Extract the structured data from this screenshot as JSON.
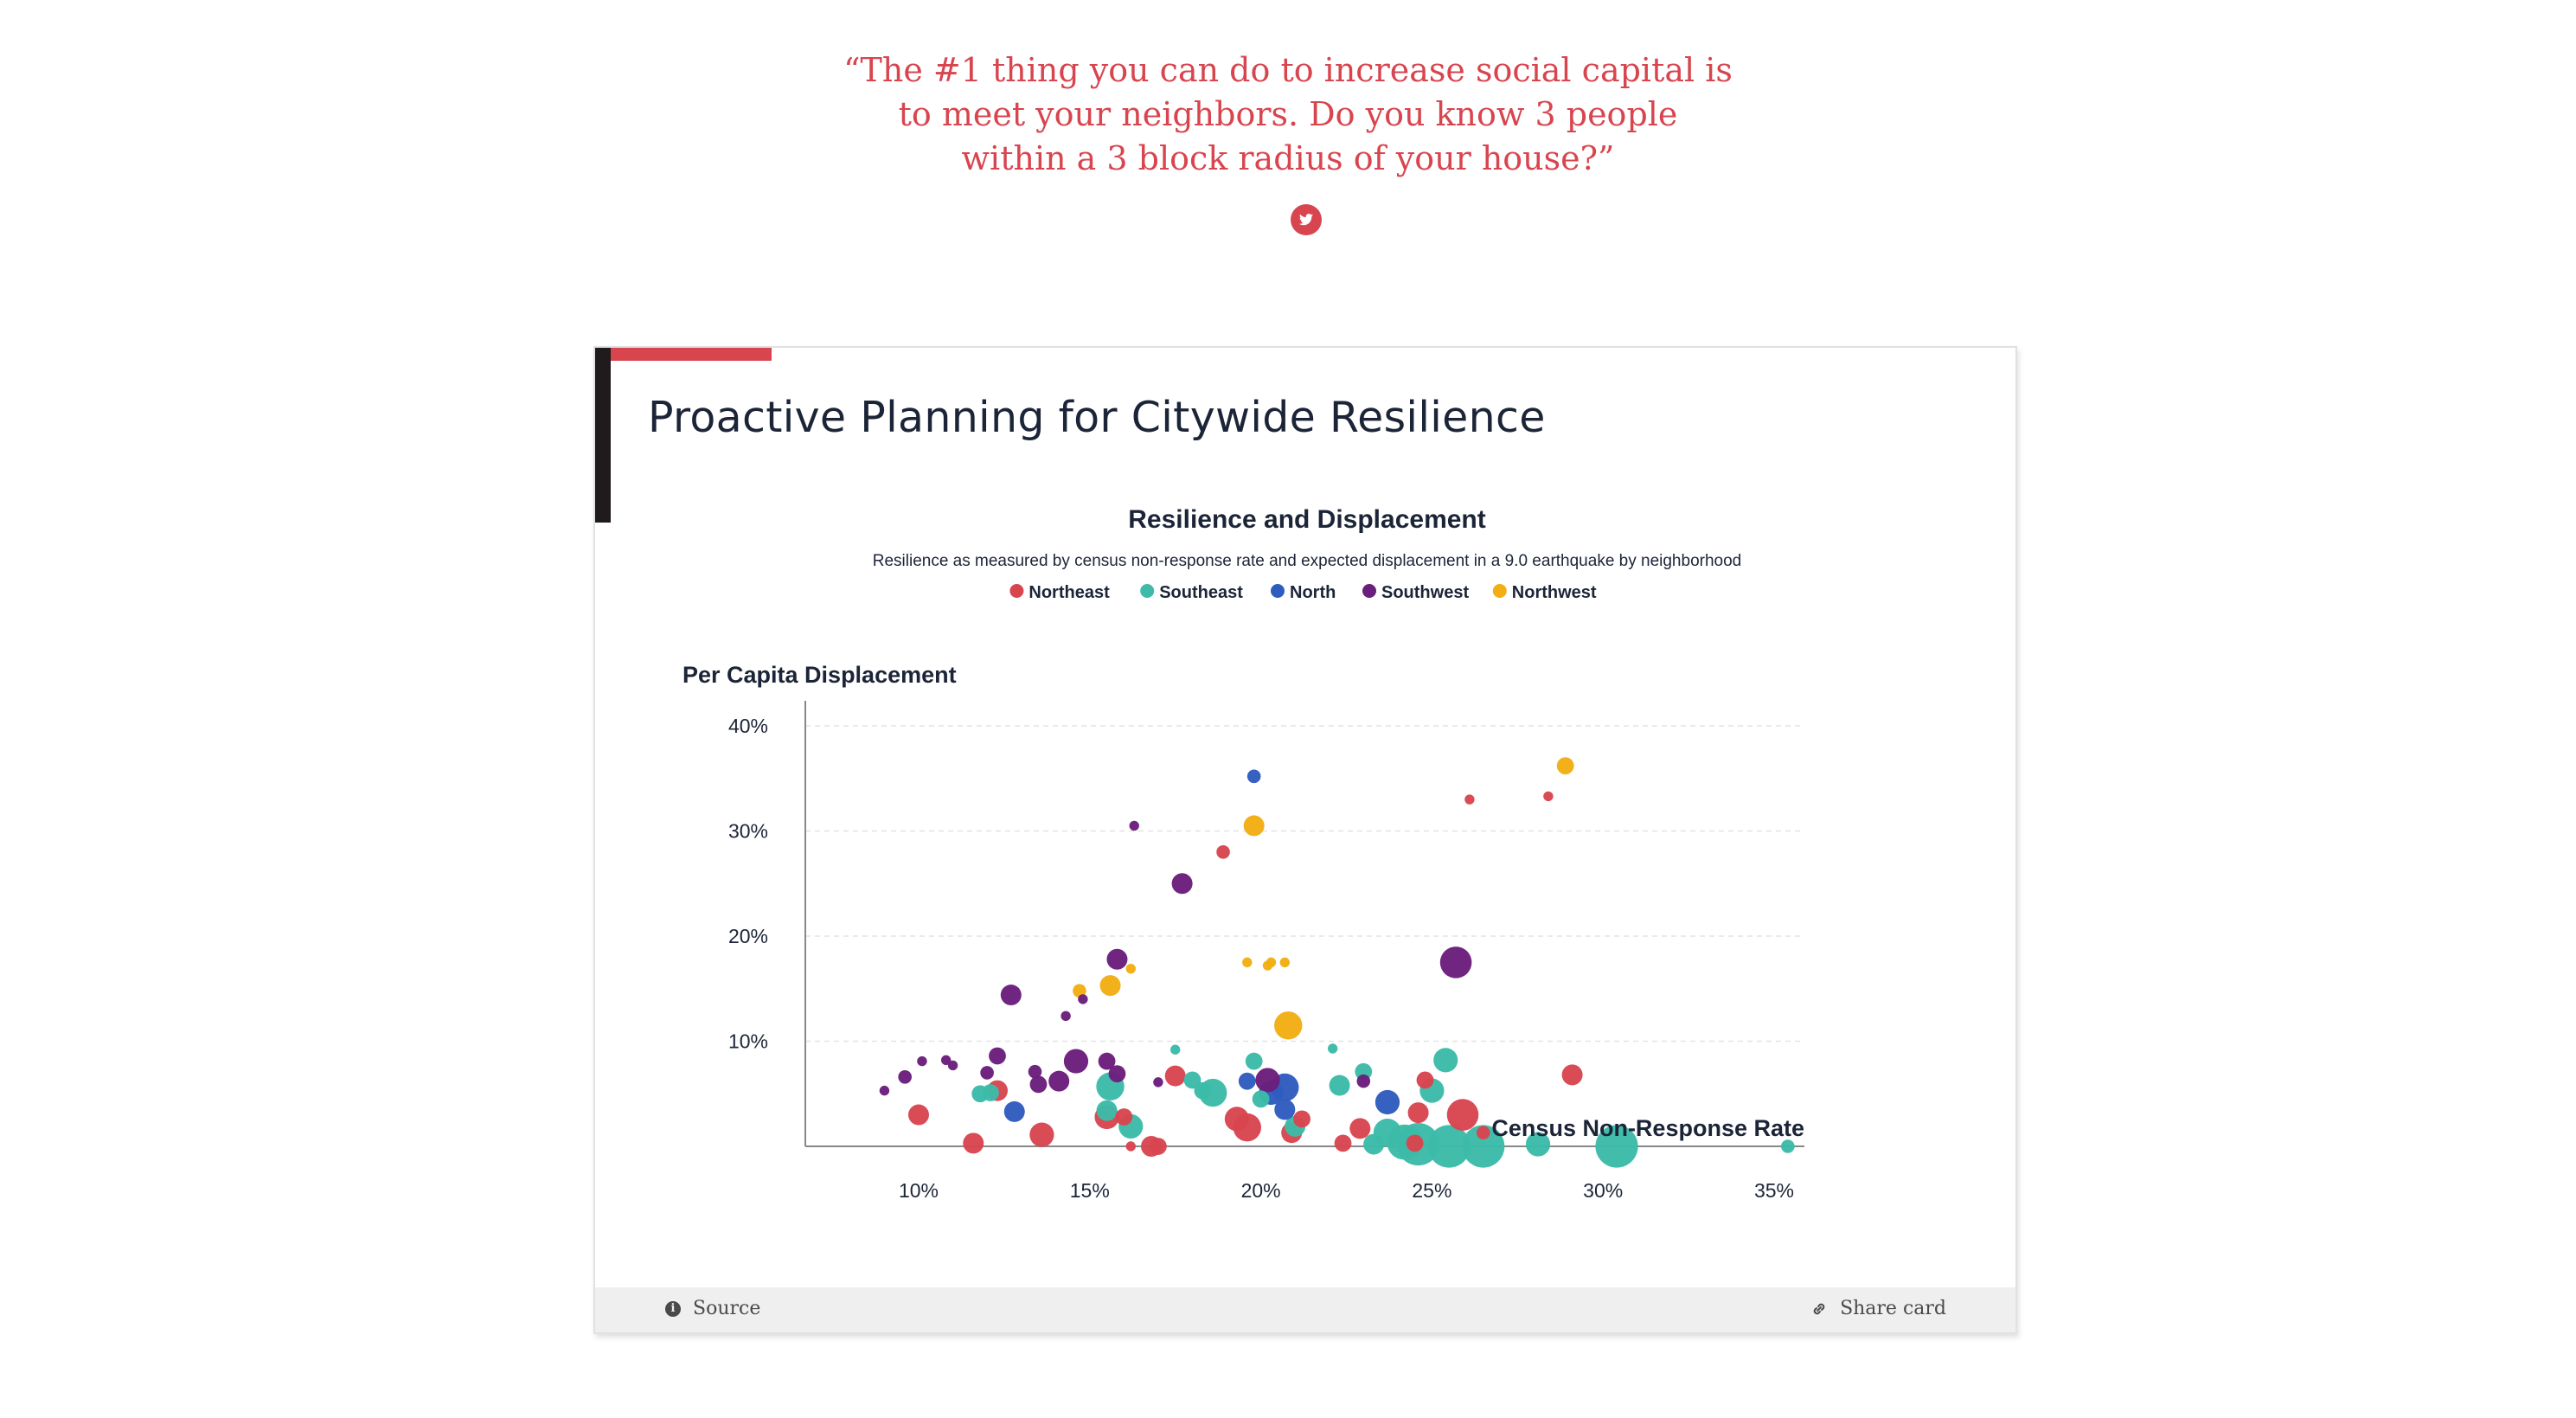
{
  "quote": {
    "lines": [
      "“The #1 thing you can do to increase social capital is",
      "to meet your neighbors. Do you know 3 people",
      "within a 3 block radius of your house?”"
    ]
  },
  "card": {
    "title": "Proactive Planning for Citywide Resilience",
    "footer": {
      "source_label": "Source",
      "share_label": "Share card"
    }
  },
  "colors": {
    "accent": "#d8454f",
    "Northeast": "#d8454f",
    "Southeast": "#3dbba8",
    "North": "#2f5cbf",
    "Southwest": "#6b1f7c",
    "Northwest": "#f2ae13"
  },
  "icons": {
    "tweet": "twitter-bird-icon",
    "source": "info-icon",
    "share": "link-icon"
  },
  "chart_data": {
    "type": "scatter",
    "title": "Resilience and Displacement",
    "subtitle": "Resilience as measured by census non-response rate and expected displacement in a 9.0 earthquake by neighborhood",
    "xlabel": "Census Non-Response Rate",
    "ylabel": "Per Capita Displacement",
    "xlim": [
      7,
      37.5
    ],
    "ylim": [
      0,
      42
    ],
    "x_ticks": [
      {
        "value": 10,
        "label": "10%"
      },
      {
        "value": 15,
        "label": "15%"
      },
      {
        "value": 20,
        "label": "20%"
      },
      {
        "value": 25,
        "label": "25%"
      },
      {
        "value": 30,
        "label": "30%"
      },
      {
        "value": 35,
        "label": "35%"
      }
    ],
    "y_ticks": [
      {
        "value": 10,
        "label": "10%"
      },
      {
        "value": 20,
        "label": "20%"
      },
      {
        "value": 30,
        "label": "30%"
      },
      {
        "value": 40,
        "label": "40%"
      }
    ],
    "legend_position": "top-center",
    "grid": "horizontal dashed",
    "size_note": "point size varies",
    "series": [
      {
        "name": "Northeast",
        "points": [
          {
            "x": 10.0,
            "y": 3.0,
            "s": 5
          },
          {
            "x": 11.6,
            "y": 0.3,
            "s": 5
          },
          {
            "x": 12.3,
            "y": 5.3,
            "s": 5
          },
          {
            "x": 13.6,
            "y": 1.1,
            "s": 6
          },
          {
            "x": 15.5,
            "y": 2.8,
            "s": 6
          },
          {
            "x": 16.0,
            "y": 2.8,
            "s": 4
          },
          {
            "x": 16.2,
            "y": 0.0,
            "s": 2
          },
          {
            "x": 16.8,
            "y": 0.0,
            "s": 5
          },
          {
            "x": 17.0,
            "y": 0.0,
            "s": 4
          },
          {
            "x": 17.5,
            "y": 6.7,
            "s": 5
          },
          {
            "x": 18.9,
            "y": 28.0,
            "s": 3
          },
          {
            "x": 19.3,
            "y": 2.6,
            "s": 6
          },
          {
            "x": 19.6,
            "y": 1.8,
            "s": 7
          },
          {
            "x": 20.9,
            "y": 1.3,
            "s": 5
          },
          {
            "x": 21.2,
            "y": 2.6,
            "s": 4
          },
          {
            "x": 22.4,
            "y": 0.3,
            "s": 4
          },
          {
            "x": 22.9,
            "y": 1.7,
            "s": 5
          },
          {
            "x": 24.6,
            "y": 3.2,
            "s": 5
          },
          {
            "x": 24.8,
            "y": 6.3,
            "s": 4
          },
          {
            "x": 24.5,
            "y": 0.3,
            "s": 4
          },
          {
            "x": 25.9,
            "y": 3.0,
            "s": 8
          },
          {
            "x": 26.1,
            "y": 33.0,
            "s": 2
          },
          {
            "x": 26.5,
            "y": 1.3,
            "s": 3
          },
          {
            "x": 28.4,
            "y": 33.3,
            "s": 2
          },
          {
            "x": 29.1,
            "y": 6.8,
            "s": 5
          }
        ]
      },
      {
        "name": "Southeast",
        "points": [
          {
            "x": 11.8,
            "y": 5.0,
            "s": 4
          },
          {
            "x": 12.1,
            "y": 5.1,
            "s": 4
          },
          {
            "x": 15.5,
            "y": 3.4,
            "s": 5
          },
          {
            "x": 15.6,
            "y": 5.7,
            "s": 7
          },
          {
            "x": 16.2,
            "y": 1.9,
            "s": 6
          },
          {
            "x": 17.5,
            "y": 9.2,
            "s": 2
          },
          {
            "x": 18.0,
            "y": 6.3,
            "s": 4
          },
          {
            "x": 18.3,
            "y": 5.3,
            "s": 4
          },
          {
            "x": 18.6,
            "y": 5.1,
            "s": 7
          },
          {
            "x": 19.8,
            "y": 8.1,
            "s": 4
          },
          {
            "x": 20.0,
            "y": 4.5,
            "s": 4
          },
          {
            "x": 21.0,
            "y": 1.9,
            "s": 5
          },
          {
            "x": 22.1,
            "y": 9.3,
            "s": 2
          },
          {
            "x": 22.3,
            "y": 5.8,
            "s": 5
          },
          {
            "x": 23.0,
            "y": 7.1,
            "s": 4
          },
          {
            "x": 23.3,
            "y": 0.2,
            "s": 5
          },
          {
            "x": 23.7,
            "y": 1.3,
            "s": 7
          },
          {
            "x": 24.2,
            "y": 0.4,
            "s": 9
          },
          {
            "x": 24.6,
            "y": 0.2,
            "s": 11
          },
          {
            "x": 25.0,
            "y": 5.3,
            "s": 6
          },
          {
            "x": 25.4,
            "y": 8.2,
            "s": 6
          },
          {
            "x": 25.5,
            "y": 0.0,
            "s": 11
          },
          {
            "x": 26.5,
            "y": 0.0,
            "s": 11
          },
          {
            "x": 28.1,
            "y": 0.2,
            "s": 6
          },
          {
            "x": 30.4,
            "y": 0.0,
            "s": 11
          },
          {
            "x": 35.4,
            "y": 0.0,
            "s": 3
          }
        ]
      },
      {
        "name": "North",
        "points": [
          {
            "x": 12.8,
            "y": 3.3,
            "s": 5
          },
          {
            "x": 19.8,
            "y": 35.2,
            "s": 3
          },
          {
            "x": 19.6,
            "y": 6.2,
            "s": 4
          },
          {
            "x": 20.3,
            "y": 5.1,
            "s": 6
          },
          {
            "x": 20.7,
            "y": 5.6,
            "s": 7
          },
          {
            "x": 20.7,
            "y": 3.5,
            "s": 5
          },
          {
            "x": 23.7,
            "y": 4.2,
            "s": 6
          }
        ]
      },
      {
        "name": "Southwest",
        "points": [
          {
            "x": 9.0,
            "y": 5.3,
            "s": 2
          },
          {
            "x": 9.6,
            "y": 6.6,
            "s": 3
          },
          {
            "x": 10.1,
            "y": 8.1,
            "s": 2
          },
          {
            "x": 10.8,
            "y": 8.2,
            "s": 2
          },
          {
            "x": 11.0,
            "y": 7.7,
            "s": 2
          },
          {
            "x": 12.0,
            "y": 7.0,
            "s": 3
          },
          {
            "x": 12.3,
            "y": 8.6,
            "s": 4
          },
          {
            "x": 12.7,
            "y": 14.4,
            "s": 5
          },
          {
            "x": 13.4,
            "y": 7.1,
            "s": 3
          },
          {
            "x": 13.5,
            "y": 5.9,
            "s": 4
          },
          {
            "x": 14.1,
            "y": 6.2,
            "s": 5
          },
          {
            "x": 14.3,
            "y": 12.4,
            "s": 2
          },
          {
            "x": 14.6,
            "y": 8.1,
            "s": 6
          },
          {
            "x": 14.8,
            "y": 14.0,
            "s": 2
          },
          {
            "x": 15.5,
            "y": 8.1,
            "s": 4
          },
          {
            "x": 15.8,
            "y": 6.9,
            "s": 4
          },
          {
            "x": 15.8,
            "y": 17.8,
            "s": 5
          },
          {
            "x": 16.3,
            "y": 30.5,
            "s": 2
          },
          {
            "x": 17.0,
            "y": 6.1,
            "s": 2
          },
          {
            "x": 17.7,
            "y": 25.0,
            "s": 5
          },
          {
            "x": 20.2,
            "y": 6.3,
            "s": 6
          },
          {
            "x": 23.0,
            "y": 6.2,
            "s": 3
          },
          {
            "x": 25.7,
            "y": 17.5,
            "s": 8
          }
        ]
      },
      {
        "name": "Northwest",
        "points": [
          {
            "x": 14.7,
            "y": 14.8,
            "s": 3
          },
          {
            "x": 15.6,
            "y": 15.3,
            "s": 5
          },
          {
            "x": 16.2,
            "y": 16.9,
            "s": 2
          },
          {
            "x": 19.6,
            "y": 17.5,
            "s": 2
          },
          {
            "x": 20.2,
            "y": 17.2,
            "s": 2
          },
          {
            "x": 20.3,
            "y": 17.5,
            "s": 2
          },
          {
            "x": 20.7,
            "y": 17.5,
            "s": 2
          },
          {
            "x": 19.8,
            "y": 30.5,
            "s": 5
          },
          {
            "x": 20.8,
            "y": 11.5,
            "s": 7
          },
          {
            "x": 28.9,
            "y": 36.2,
            "s": 4
          }
        ]
      }
    ]
  }
}
